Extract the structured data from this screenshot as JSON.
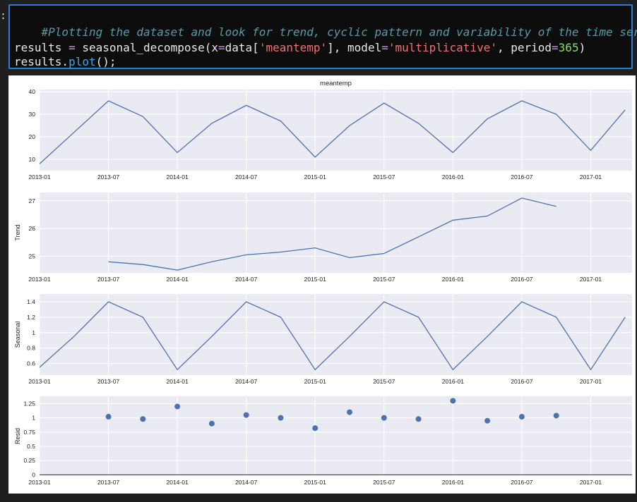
{
  "prompt_marker": ":",
  "cell": {
    "comment": "#Plotting the dataset and look for trend, cyclic pattern and variability of the time series",
    "line2": {
      "p1": "results ",
      "p2": "=",
      "p3": " seasonal_decompose(x",
      "p4": "=",
      "p5": "data[",
      "p6": "'meantemp'",
      "p7": "], model",
      "p8": "=",
      "p9": "'multiplicative'",
      "p10": ", period",
      "p11": "=",
      "p12": "365",
      "p13": ")"
    },
    "line3": {
      "p1": "results.",
      "p2": "plot",
      "p3": "();"
    }
  },
  "chart_data": [
    {
      "type": "line",
      "title": "meantemp",
      "ylabel": "",
      "ylim": [
        5,
        41
      ],
      "yticks": [
        10,
        20,
        30,
        40
      ],
      "x_dates": [
        "2013-01",
        "2013-07",
        "2014-01",
        "2014-07",
        "2015-01",
        "2015-07",
        "2016-01",
        "2016-07",
        "2017-01"
      ],
      "x": [
        "2013-01",
        "2013-04",
        "2013-07",
        "2013-10",
        "2014-01",
        "2014-04",
        "2014-07",
        "2014-10",
        "2015-01",
        "2015-04",
        "2015-07",
        "2015-10",
        "2016-01",
        "2016-04",
        "2016-07",
        "2016-10",
        "2017-01",
        "2017-04"
      ],
      "values": [
        8,
        22,
        36,
        29,
        13,
        26,
        34,
        27,
        11,
        25,
        35,
        26,
        13,
        28,
        36,
        30,
        14,
        32
      ]
    },
    {
      "type": "line",
      "title": "",
      "ylabel": "Trend",
      "ylim": [
        24.4,
        27.3
      ],
      "yticks": [
        25,
        26,
        27
      ],
      "x_dates": [
        "2013-01",
        "2013-07",
        "2014-01",
        "2014-07",
        "2015-01",
        "2015-07",
        "2016-01",
        "2016-07",
        "2017-01"
      ],
      "x": [
        "2013-07",
        "2013-10",
        "2014-01",
        "2014-04",
        "2014-07",
        "2014-10",
        "2015-01",
        "2015-04",
        "2015-07",
        "2015-10",
        "2016-01",
        "2016-04",
        "2016-07",
        "2016-10"
      ],
      "values": [
        24.8,
        24.7,
        24.5,
        24.8,
        25.05,
        25.15,
        25.3,
        24.95,
        25.1,
        25.7,
        26.3,
        26.45,
        27.1,
        26.8
      ]
    },
    {
      "type": "line",
      "title": "",
      "ylabel": "Seasonal",
      "ylim": [
        0.45,
        1.5
      ],
      "yticks": [
        0.6,
        0.8,
        1.0,
        1.2,
        1.4
      ],
      "x_dates": [
        "2013-01",
        "2013-07",
        "2014-01",
        "2014-07",
        "2015-01",
        "2015-07",
        "2016-01",
        "2016-07",
        "2017-01"
      ],
      "x": [
        "2013-01",
        "2013-04",
        "2013-07",
        "2013-10",
        "2014-01",
        "2014-04",
        "2014-07",
        "2014-10",
        "2015-01",
        "2015-04",
        "2015-07",
        "2015-10",
        "2016-01",
        "2016-04",
        "2016-07",
        "2016-10",
        "2017-01",
        "2017-04"
      ],
      "values": [
        0.55,
        0.95,
        1.4,
        1.2,
        0.52,
        0.95,
        1.4,
        1.2,
        0.52,
        0.95,
        1.4,
        1.2,
        0.52,
        0.95,
        1.4,
        1.2,
        0.52,
        1.2
      ]
    },
    {
      "type": "scatter",
      "title": "",
      "ylabel": "Resid",
      "ylim": [
        -0.02,
        1.38
      ],
      "yticks": [
        0.0,
        0.25,
        0.5,
        0.75,
        1.0,
        1.25
      ],
      "x_dates": [
        "2013-01",
        "2013-07",
        "2014-01",
        "2014-07",
        "2015-01",
        "2015-07",
        "2016-01",
        "2016-07",
        "2017-01"
      ],
      "x": [
        "2013-07",
        "2013-10",
        "2014-01",
        "2014-04",
        "2014-07",
        "2014-10",
        "2015-01",
        "2015-04",
        "2015-07",
        "2015-10",
        "2016-01",
        "2016-04",
        "2016-07",
        "2016-10"
      ],
      "values": [
        1.02,
        0.98,
        1.2,
        0.9,
        1.05,
        1.0,
        0.82,
        1.1,
        1.0,
        0.98,
        1.3,
        0.95,
        1.02,
        1.04
      ]
    }
  ],
  "colors": {
    "line": "#4c72b0",
    "axes_bg": "#eaeaf2",
    "grid": "#ffffff",
    "cell_border": "#2c7fd6"
  }
}
